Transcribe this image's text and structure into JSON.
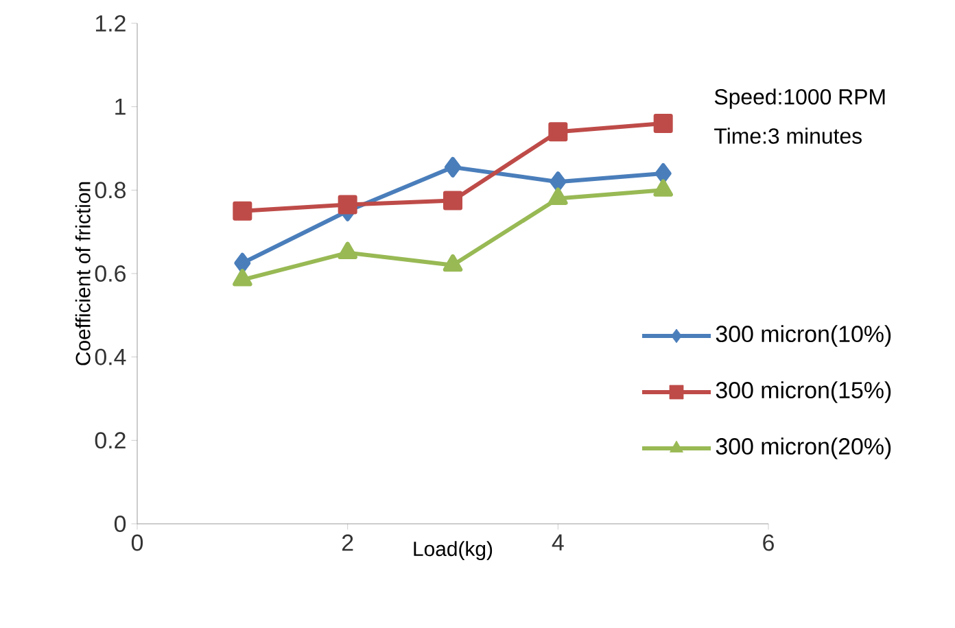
{
  "chart_data": {
    "type": "line",
    "xlabel": "Load(kg)",
    "ylabel": "Coefficient of friction",
    "annotations": [
      "Speed:1000 RPM",
      "Time:3 minutes"
    ],
    "x": [
      1,
      2,
      3,
      4,
      5
    ],
    "series": [
      {
        "name": "300 micron(10%)",
        "color": "#4a7ebb",
        "marker": "diamond",
        "values": [
          0.625,
          0.75,
          0.855,
          0.82,
          0.84
        ]
      },
      {
        "name": "300 micron(15%)",
        "color": "#be4b48",
        "marker": "square",
        "values": [
          0.75,
          0.765,
          0.775,
          0.94,
          0.96
        ]
      },
      {
        "name": "300 micron(20%)",
        "color": "#98b954",
        "marker": "triangle",
        "values": [
          0.585,
          0.65,
          0.62,
          0.78,
          0.8
        ]
      }
    ],
    "xlim": [
      0,
      6
    ],
    "xticks": [
      0,
      2,
      4,
      6
    ],
    "ylim": [
      0,
      1.2
    ],
    "yticks": [
      0,
      0.2,
      0.4,
      0.6,
      0.8,
      1,
      1.2
    ],
    "grid": false,
    "legend": "right"
  }
}
